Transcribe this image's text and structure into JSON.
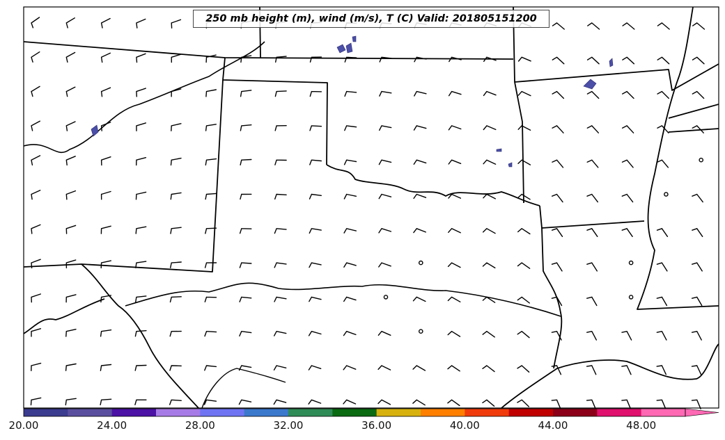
{
  "title": "250 mb height (m), wind (m/s), T (C) Valid: 201805151200",
  "colorbar": {
    "colors": [
      "#3b3b8f",
      "#5a4f9f",
      "#4b12a5",
      "#a77be6",
      "#6f74f3",
      "#3b79cc",
      "#2f8c57",
      "#0b6b12",
      "#d7b20f",
      "#ff8000",
      "#f03c0c",
      "#c00000",
      "#8b0018",
      "#e0106e",
      "#ff69b4"
    ],
    "tick_labels": [
      "20.00",
      "24.00",
      "28.00",
      "32.00",
      "36.00",
      "40.00",
      "44.00",
      "48.00"
    ],
    "extend": "max"
  },
  "map_style": {
    "boundary_color": "#000000",
    "temperature_fill_color": "#4b4fa8",
    "barb_color": "#000000"
  }
}
